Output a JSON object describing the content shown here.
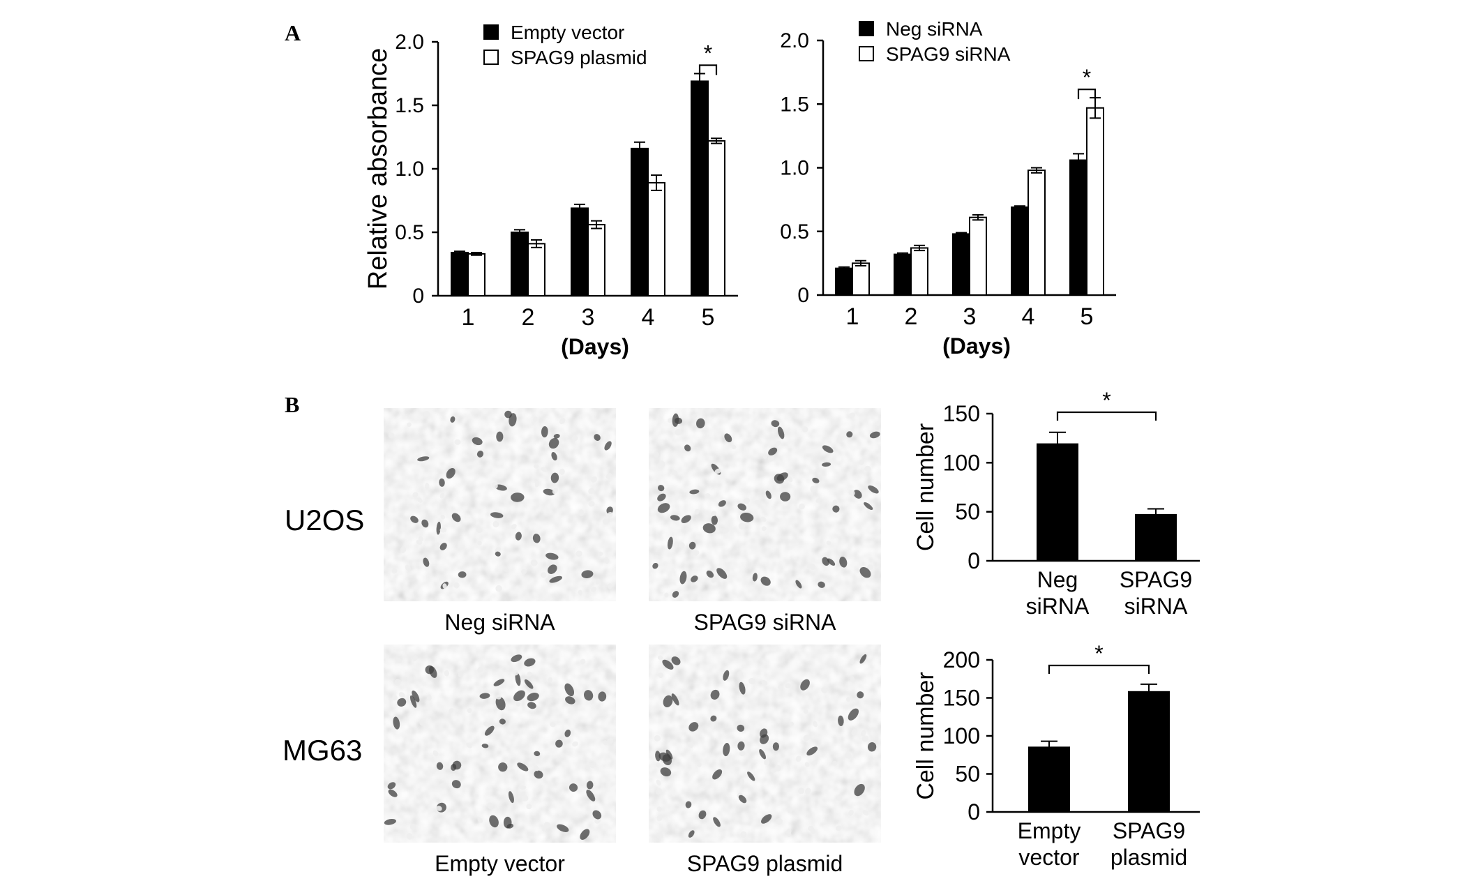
{
  "figure": {
    "panel_a_label": "A",
    "panel_b_label": "B",
    "row_labels": [
      "U2OS",
      "MG63"
    ],
    "micrographs": [
      {
        "row": 0,
        "caption": "Neg siRNA"
      },
      {
        "row": 0,
        "caption": "SPAG9 siRNA"
      },
      {
        "row": 1,
        "caption": "Empty vector"
      },
      {
        "row": 1,
        "caption": "SPAG9 plasmid"
      }
    ]
  },
  "colors": {
    "filled_bar": "#000000",
    "open_bar": "#ffffff",
    "axis": "#000000"
  },
  "chart_data": [
    {
      "id": "a-left",
      "type": "bar",
      "ylabel": "Relative absorbance",
      "xlabel": "(Days)",
      "ylim": [
        0,
        2.0
      ],
      "yticks": [
        "0",
        "0.5",
        "1.0",
        "1.5",
        "2.0"
      ],
      "categories": [
        "1",
        "2",
        "3",
        "4",
        "5"
      ],
      "legend_position": "top-left",
      "series": [
        {
          "name": "Empty vector",
          "fill": "black",
          "values": [
            0.34,
            0.5,
            0.69,
            1.16,
            1.69
          ],
          "errors": [
            0.01,
            0.02,
            0.03,
            0.05,
            0.06
          ]
        },
        {
          "name": "SPAG9 plasmid",
          "fill": "white",
          "values": [
            0.33,
            0.41,
            0.56,
            0.89,
            1.22
          ],
          "errors": [
            0.01,
            0.03,
            0.03,
            0.06,
            0.02
          ]
        }
      ],
      "significance": [
        {
          "category": "5",
          "label": "*"
        }
      ]
    },
    {
      "id": "a-right",
      "type": "bar",
      "ylabel": "",
      "xlabel": "(Days)",
      "ylim": [
        0,
        2.0
      ],
      "yticks": [
        "0",
        "0.5",
        "1.0",
        "1.5",
        "2.0"
      ],
      "categories": [
        "1",
        "2",
        "3",
        "4",
        "5"
      ],
      "legend_position": "top-left",
      "series": [
        {
          "name": "Neg siRNA",
          "fill": "black",
          "values": [
            0.21,
            0.32,
            0.48,
            0.69,
            1.06
          ],
          "errors": [
            0.01,
            0.01,
            0.01,
            0.01,
            0.05
          ]
        },
        {
          "name": "SPAG9 siRNA",
          "fill": "white",
          "values": [
            0.25,
            0.37,
            0.61,
            0.98,
            1.47
          ],
          "errors": [
            0.02,
            0.02,
            0.02,
            0.02,
            0.08
          ]
        }
      ],
      "significance": [
        {
          "category": "5",
          "label": "*"
        }
      ]
    },
    {
      "id": "b-top",
      "type": "bar",
      "ylabel": "Cell number",
      "xlabel": "",
      "ylim": [
        0,
        150
      ],
      "yticks": [
        "0",
        "50",
        "100",
        "150"
      ],
      "categories": [
        [
          "Neg",
          "siRNA"
        ],
        [
          "SPAG9",
          "siRNA"
        ]
      ],
      "values": [
        119,
        47
      ],
      "errors": [
        12,
        6
      ],
      "significance": [
        {
          "between": [
            0,
            1
          ],
          "label": "*"
        }
      ]
    },
    {
      "id": "b-bottom",
      "type": "bar",
      "ylabel": "Cell number",
      "xlabel": "",
      "ylim": [
        0,
        200
      ],
      "yticks": [
        "0",
        "50",
        "100",
        "150",
        "200"
      ],
      "categories": [
        [
          "Empty",
          "vector"
        ],
        [
          "SPAG9",
          "plasmid"
        ]
      ],
      "values": [
        85,
        158
      ],
      "errors": [
        8,
        10
      ],
      "significance": [
        {
          "between": [
            0,
            1
          ],
          "label": "*"
        }
      ]
    }
  ]
}
